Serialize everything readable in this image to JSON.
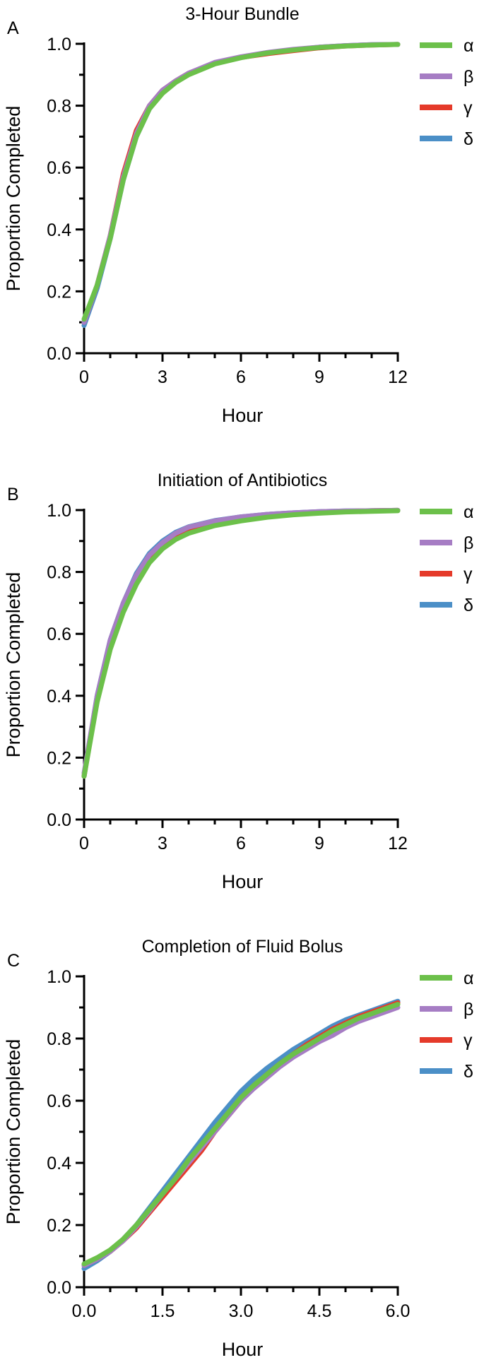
{
  "chart_data": [
    {
      "type": "line",
      "panel": "A",
      "title": "3-Hour Bundle",
      "xlabel": "Hour",
      "ylabel": "Proportion Completed",
      "xlim": [
        0,
        12
      ],
      "ylim": [
        0,
        1.0
      ],
      "xticks": [
        "0",
        "3",
        "6",
        "9",
        "12"
      ],
      "yticks": [
        "0.0",
        "0.2",
        "0.4",
        "0.6",
        "0.8",
        "1.0"
      ],
      "legend_position": "right",
      "series": [
        {
          "name": "α",
          "color": "#6cc04a",
          "x": [
            0,
            0.5,
            1,
            1.5,
            2,
            2.5,
            3,
            3.5,
            4,
            5,
            6,
            7,
            8,
            9,
            10,
            11,
            12
          ],
          "y": [
            0.11,
            0.22,
            0.37,
            0.56,
            0.7,
            0.79,
            0.84,
            0.875,
            0.9,
            0.935,
            0.955,
            0.97,
            0.98,
            0.988,
            0.993,
            0.996,
            0.998
          ]
        },
        {
          "name": "β",
          "color": "#a67dc4",
          "x": [
            0,
            0.5,
            1,
            1.5,
            2,
            2.5,
            3,
            3.5,
            4,
            5,
            6,
            7,
            8,
            9,
            10,
            11,
            12
          ],
          "y": [
            0.1,
            0.22,
            0.38,
            0.57,
            0.71,
            0.8,
            0.85,
            0.88,
            0.905,
            0.94,
            0.958,
            0.972,
            0.982,
            0.989,
            0.994,
            0.997,
            0.998
          ]
        },
        {
          "name": "γ",
          "color": "#e53a2a",
          "x": [
            0,
            0.5,
            1,
            1.5,
            2,
            2.5,
            3,
            3.5,
            4,
            5,
            6,
            7,
            8,
            9,
            10,
            11,
            12
          ],
          "y": [
            0.1,
            0.22,
            0.38,
            0.58,
            0.72,
            0.8,
            0.85,
            0.88,
            0.905,
            0.938,
            0.956,
            0.968,
            0.978,
            0.987,
            0.993,
            0.996,
            0.998
          ]
        },
        {
          "name": "δ",
          "color": "#4b8fc7",
          "x": [
            0,
            0.5,
            1,
            1.5,
            2,
            2.5,
            3,
            3.5,
            4,
            5,
            6,
            7,
            8,
            9,
            10,
            11,
            12
          ],
          "y": [
            0.09,
            0.21,
            0.37,
            0.56,
            0.7,
            0.79,
            0.845,
            0.88,
            0.903,
            0.937,
            0.957,
            0.971,
            0.981,
            0.989,
            0.994,
            0.997,
            0.998
          ]
        }
      ]
    },
    {
      "type": "line",
      "panel": "B",
      "title": "Initiation of Antibiotics",
      "xlabel": "Hour",
      "ylabel": "Proportion Completed",
      "xlim": [
        0,
        12
      ],
      "ylim": [
        0,
        1.0
      ],
      "xticks": [
        "0",
        "3",
        "6",
        "9",
        "12"
      ],
      "yticks": [
        "0.0",
        "0.2",
        "0.4",
        "0.6",
        "0.8",
        "1.0"
      ],
      "legend_position": "right",
      "series": [
        {
          "name": "α",
          "color": "#6cc04a",
          "x": [
            0,
            0.5,
            1,
            1.5,
            2,
            2.5,
            3,
            3.5,
            4,
            5,
            6,
            7,
            8,
            9,
            10,
            11,
            12
          ],
          "y": [
            0.14,
            0.38,
            0.55,
            0.67,
            0.76,
            0.83,
            0.875,
            0.905,
            0.925,
            0.95,
            0.965,
            0.977,
            0.985,
            0.99,
            0.994,
            0.996,
            0.998
          ]
        },
        {
          "name": "β",
          "color": "#a67dc4",
          "x": [
            0,
            0.5,
            1,
            1.5,
            2,
            2.5,
            3,
            3.5,
            4,
            5,
            6,
            7,
            8,
            9,
            10,
            11,
            12
          ],
          "y": [
            0.15,
            0.4,
            0.58,
            0.7,
            0.79,
            0.855,
            0.895,
            0.925,
            0.945,
            0.965,
            0.978,
            0.986,
            0.991,
            0.995,
            0.997,
            0.998,
            0.999
          ]
        },
        {
          "name": "γ",
          "color": "#e53a2a",
          "x": [
            0,
            0.5,
            1,
            1.5,
            2,
            2.5,
            3,
            3.5,
            4,
            5,
            6,
            7,
            8,
            9,
            10,
            11,
            12
          ],
          "y": [
            0.14,
            0.39,
            0.57,
            0.69,
            0.78,
            0.85,
            0.89,
            0.92,
            0.94,
            0.962,
            0.976,
            0.985,
            0.99,
            0.994,
            0.996,
            0.998,
            0.999
          ]
        },
        {
          "name": "δ",
          "color": "#4b8fc7",
          "x": [
            0,
            0.5,
            1,
            1.5,
            2,
            2.5,
            3,
            3.5,
            4,
            5,
            6,
            7,
            8,
            9,
            10,
            11,
            12
          ],
          "y": [
            0.14,
            0.4,
            0.58,
            0.7,
            0.795,
            0.86,
            0.9,
            0.928,
            0.946,
            0.966,
            0.978,
            0.986,
            0.991,
            0.995,
            0.997,
            0.998,
            0.999
          ]
        }
      ]
    },
    {
      "type": "line",
      "panel": "C",
      "title": "Completion of Fluid Bolus",
      "xlabel": "Hour",
      "ylabel": "Proportion Completed",
      "xlim": [
        0,
        6
      ],
      "ylim": [
        0,
        1.0
      ],
      "xticks": [
        "0.0",
        "1.5",
        "3.0",
        "4.5",
        "6.0"
      ],
      "yticks": [
        "0.0",
        "0.2",
        "0.4",
        "0.6",
        "0.8",
        "1.0"
      ],
      "legend_position": "right",
      "series": [
        {
          "name": "α",
          "color": "#6cc04a",
          "x": [
            0,
            0.25,
            0.5,
            0.75,
            1,
            1.25,
            1.5,
            1.75,
            2,
            2.25,
            2.5,
            2.75,
            3,
            3.25,
            3.5,
            3.75,
            4,
            4.25,
            4.5,
            4.75,
            5,
            5.25,
            5.5,
            5.75,
            6
          ],
          "y": [
            0.075,
            0.095,
            0.12,
            0.155,
            0.2,
            0.25,
            0.3,
            0.35,
            0.41,
            0.46,
            0.51,
            0.56,
            0.61,
            0.65,
            0.685,
            0.72,
            0.75,
            0.775,
            0.8,
            0.825,
            0.845,
            0.865,
            0.88,
            0.895,
            0.91
          ]
        },
        {
          "name": "β",
          "color": "#a67dc4",
          "x": [
            0,
            0.25,
            0.5,
            0.75,
            1,
            1.25,
            1.5,
            1.75,
            2,
            2.25,
            2.5,
            2.75,
            3,
            3.25,
            3.5,
            3.75,
            4,
            4.25,
            4.5,
            4.75,
            5,
            5.25,
            5.5,
            5.75,
            6
          ],
          "y": [
            0.07,
            0.09,
            0.115,
            0.15,
            0.195,
            0.245,
            0.3,
            0.35,
            0.4,
            0.45,
            0.5,
            0.55,
            0.6,
            0.64,
            0.675,
            0.71,
            0.74,
            0.765,
            0.79,
            0.81,
            0.835,
            0.855,
            0.87,
            0.885,
            0.9
          ]
        },
        {
          "name": "γ",
          "color": "#e53a2a",
          "x": [
            0,
            0.25,
            0.5,
            0.75,
            1,
            1.25,
            1.5,
            1.75,
            2,
            2.25,
            2.5,
            2.75,
            3,
            3.25,
            3.5,
            3.75,
            4,
            4.25,
            4.5,
            4.75,
            5,
            5.25,
            5.5,
            5.75,
            6
          ],
          "y": [
            0.07,
            0.09,
            0.115,
            0.15,
            0.19,
            0.24,
            0.29,
            0.34,
            0.39,
            0.44,
            0.5,
            0.55,
            0.6,
            0.645,
            0.685,
            0.72,
            0.75,
            0.78,
            0.805,
            0.83,
            0.85,
            0.87,
            0.885,
            0.9,
            0.915
          ]
        },
        {
          "name": "δ",
          "color": "#4b8fc7",
          "x": [
            0,
            0.25,
            0.5,
            0.75,
            1,
            1.25,
            1.5,
            1.75,
            2,
            2.25,
            2.5,
            2.75,
            3,
            3.25,
            3.5,
            3.75,
            4,
            4.25,
            4.5,
            4.75,
            5,
            5.25,
            5.5,
            5.75,
            6
          ],
          "y": [
            0.06,
            0.085,
            0.115,
            0.155,
            0.2,
            0.255,
            0.31,
            0.365,
            0.42,
            0.475,
            0.53,
            0.58,
            0.63,
            0.67,
            0.705,
            0.735,
            0.765,
            0.79,
            0.815,
            0.84,
            0.86,
            0.875,
            0.89,
            0.905,
            0.92
          ]
        }
      ]
    }
  ]
}
